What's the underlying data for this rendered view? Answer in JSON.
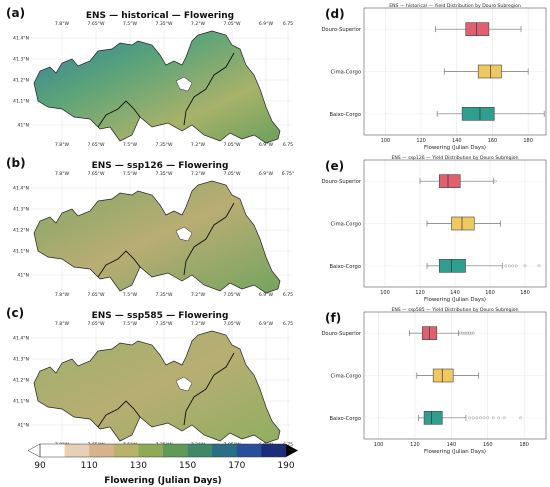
{
  "map_panels": [
    {
      "panel_label": "(a)",
      "title": "ENS — historical — Flowering",
      "lon_ticks_top": [
        "7.8°W",
        "7.65°W",
        "7.5°W",
        "7.35°W",
        "7.2°W",
        "7.05°W",
        "6.9°W",
        "6.75"
      ],
      "lon_ticks_bottom": [
        "7.8°W",
        "7.65°W",
        "7.5°W",
        "7.35°W",
        "7.2°W",
        "7.05°W",
        "6.9°W",
        "6.75"
      ],
      "lat_ticks": [
        "41.4°N",
        "41.3°N",
        "41.2°N",
        "41.1°N",
        "41°N"
      ]
    },
    {
      "panel_label": "(b)",
      "title": "ENS — ssp126 — Flowering",
      "lon_ticks_top": [
        "7.8°W",
        "7.65°W",
        "7.5°W",
        "7.35°W",
        "7.2°W",
        "7.05°W",
        "6.9°W",
        "6.75°"
      ],
      "lon_ticks_bottom": [
        "7.8°W",
        "7.65°W",
        "7.5°W",
        "7.35°W",
        "7.2°W",
        "7.05°W",
        "6.9°W",
        "6.75"
      ],
      "lat_ticks": [
        "41.4°N",
        "41.3°N",
        "41.2°N",
        "41.1°N",
        "41°N"
      ]
    },
    {
      "panel_label": "(c)",
      "title": "ENS — ssp585 — Flowering",
      "lon_ticks_top": [
        "7.8°W",
        "7.65°W",
        "7.5°W",
        "7.35°W",
        "7.2°W",
        "7.05°W",
        "6.9°W",
        "6.75"
      ],
      "lon_ticks_bottom": [
        "7.8°W",
        "7.65°W",
        "7.5°W",
        "7.35°W",
        "7.2°W",
        "7.05°W",
        "6.9°W",
        "6.75"
      ],
      "lat_ticks": [
        "41.4°N",
        "41.3°N",
        "41.2°N",
        "41.1°N",
        "41°N"
      ]
    }
  ],
  "colorbar": {
    "label": "Flowering (Julian Days)",
    "ticks": [
      "90",
      "110",
      "130",
      "150",
      "170",
      "190"
    ],
    "range": [
      90,
      190
    ],
    "colors": [
      "#ffffff",
      "#e8cfb7",
      "#d6b48b",
      "#b8b26b",
      "#8eaa55",
      "#5f9a58",
      "#3f8968",
      "#2c6f84",
      "#2a4f9a",
      "#1a2c7a"
    ]
  },
  "chart_data": [
    {
      "type": "box",
      "panel_label": "(d)",
      "title": "ENS — historical — Yield Distribution by Douro Subregion",
      "xlabel": "Flowering (Julian Days)",
      "xlim": [
        88,
        190
      ],
      "xticks": [
        100,
        120,
        140,
        160,
        180
      ],
      "categories": [
        "Douro-Superior",
        "Cima-Corgo",
        "Baixo-Corgo"
      ],
      "colors": [
        "#e06070",
        "#f0c860",
        "#2f9e8f"
      ],
      "boxes": [
        {
          "whislo": 128,
          "q1": 145,
          "med": 151,
          "q3": 158,
          "whishi": 176,
          "fliers": []
        },
        {
          "whislo": 133,
          "q1": 152,
          "med": 159,
          "q3": 165,
          "whishi": 180,
          "fliers": []
        },
        {
          "whislo": 129,
          "q1": 143,
          "med": 153,
          "q3": 161,
          "whishi": 189,
          "fliers": []
        }
      ]
    },
    {
      "type": "box",
      "panel_label": "(e)",
      "title": "ENS — ssp126 — Yield Distribution by Douro Subregion",
      "xlabel": "Flowering (Julian Days)",
      "xlim": [
        88,
        192
      ],
      "xticks": [
        100,
        120,
        140,
        160,
        180
      ],
      "categories": [
        "Douro-Superior",
        "Cima-Corgo",
        "Baixo-Corgo"
      ],
      "colors": [
        "#e06070",
        "#f0c860",
        "#2f9e8f"
      ],
      "boxes": [
        {
          "whislo": 120,
          "q1": 131,
          "med": 136,
          "q3": 143,
          "whishi": 162,
          "fliers": [
            163
          ]
        },
        {
          "whislo": 124,
          "q1": 138,
          "med": 144,
          "q3": 151,
          "whishi": 166,
          "fliers": []
        },
        {
          "whislo": 124,
          "q1": 131,
          "med": 138,
          "q3": 146,
          "whishi": 167,
          "fliers": [
            169,
            171,
            173,
            175,
            180,
            188
          ]
        }
      ]
    },
    {
      "type": "box",
      "panel_label": "(f)",
      "title": "ENS — ssp585 — Yield Distribution by Douro Subregion",
      "xlabel": "Flowering (Julian Days)",
      "xlim": [
        92,
        192
      ],
      "xticks": [
        100,
        120,
        140,
        160,
        180
      ],
      "categories": [
        "Douro-Superior",
        "Cima-Corgo",
        "Baixo-Corgo"
      ],
      "colors": [
        "#e06070",
        "#f0c860",
        "#2f9e8f"
      ],
      "boxes": [
        {
          "whislo": 117,
          "q1": 124,
          "med": 128,
          "q3": 132,
          "whishi": 144,
          "fliers": [
            145,
            146,
            147,
            148,
            149,
            150,
            151,
            152
          ]
        },
        {
          "whislo": 121,
          "q1": 130,
          "med": 135,
          "q3": 141,
          "whishi": 155,
          "fliers": []
        },
        {
          "whislo": 122,
          "q1": 125,
          "med": 129,
          "q3": 135,
          "whishi": 148,
          "fliers": [
            150,
            152,
            154,
            156,
            158,
            160,
            163,
            166,
            169,
            178
          ]
        }
      ]
    }
  ]
}
